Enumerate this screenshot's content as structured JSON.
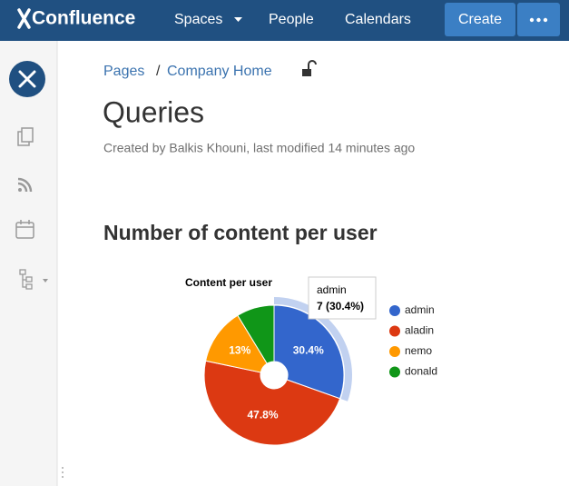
{
  "header": {
    "logo": "Confluence",
    "nav": [
      "Spaces",
      "People",
      "Calendars"
    ],
    "create": "Create"
  },
  "breadcrumb": {
    "items": [
      "Pages",
      "Company Home"
    ],
    "separator": "/"
  },
  "page": {
    "title": "Queries",
    "byline": "Created by Balkis Khouni, last modified 14 minutes ago",
    "heading": "Number of content per user"
  },
  "chart_data": {
    "type": "pie",
    "title": "Content per user",
    "categories": [
      "admin",
      "aladin",
      "nemo",
      "donald"
    ],
    "values": [
      30.4,
      47.8,
      13,
      8.7
    ],
    "value_labels": [
      "30.4%",
      "47.8%",
      "13%",
      null
    ],
    "colors": [
      "#3366cc",
      "#dc3912",
      "#ff9900",
      "#109618"
    ],
    "highlight": 0,
    "tooltip": {
      "title": "admin",
      "text": "7 (30.4%)"
    }
  }
}
